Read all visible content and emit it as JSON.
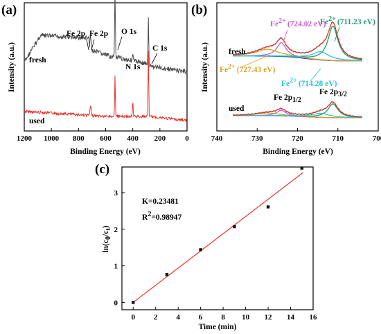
{
  "chart_data": [
    {
      "panel": "(a)",
      "type": "line",
      "xlabel": "Binding Energy (eV)",
      "ylabel": "Intensity (a.u.)",
      "xlim": [
        1200,
        0
      ],
      "xticks": [
        1200,
        1000,
        800,
        600,
        400,
        200,
        0
      ],
      "series": [
        {
          "name": "fresh",
          "color": "#4d4d4d"
        },
        {
          "name": "used",
          "color": "#e8322b"
        }
      ],
      "annotations": [
        "Fe 2p",
        "Fe 2p",
        "O 1s",
        "N 1s",
        "C 1s"
      ],
      "peaks_eV": {
        "Fe 2p": 711,
        "O 1s": 531,
        "N 1s": 400,
        "C 1s": 285
      }
    },
    {
      "panel": "(b)",
      "type": "line",
      "xlabel": "Binding Energy (eV)",
      "ylabel": "Intensity (a.u.)",
      "xlim": [
        740,
        700
      ],
      "xticks": [
        740,
        730,
        720,
        710,
        700
      ],
      "series": [
        {
          "name": "fresh"
        },
        {
          "name": "used"
        }
      ],
      "labels": {
        "p12": "Fe 2p",
        "p12_sub": "1/2",
        "p32": "Fe 2p",
        "p32_sub": "3/2"
      },
      "components": [
        {
          "label": "Fe",
          "sup": "2+",
          "value": "(724.02 eV)",
          "center": 724.02,
          "color": "#c75bd6"
        },
        {
          "label": "Fe",
          "sup": "2+",
          "value": "(711.23 eV)",
          "center": 711.23,
          "color": "#1e9b6e"
        },
        {
          "label": "Fe",
          "sup": "2+",
          "value": "(727.43 eV)",
          "center": 727.43,
          "color": "#d9a020"
        },
        {
          "label": "Fe",
          "sup": "2+",
          "value": "(714.28 eV)",
          "center": 714.28,
          "color": "#27c3d0"
        }
      ]
    },
    {
      "panel": "(c)",
      "type": "scatter",
      "xlabel": "Time (min)",
      "ylabel_main": "ln(c",
      "ylabel_sub0": "0",
      "ylabel_mid": "/c",
      "ylabel_subt": "t",
      "ylabel_end": ")",
      "xlim": [
        -1,
        16
      ],
      "ylim": [
        -0.2,
        3.7
      ],
      "xticks": [
        0,
        2,
        4,
        6,
        8,
        10,
        12,
        14,
        16
      ],
      "yticks": [
        0,
        1,
        2,
        3
      ],
      "x": [
        0,
        3,
        6,
        9,
        12,
        15
      ],
      "y": [
        0.0,
        0.76,
        1.44,
        2.07,
        2.61,
        3.67
      ],
      "fit": {
        "slope": 0.23481,
        "intercept": 0.0,
        "color": "#e8322b"
      },
      "k_text": "K=0.23481",
      "r2_main": "R",
      "r2_sup": "2",
      "r2_value": "=0.98947"
    }
  ]
}
